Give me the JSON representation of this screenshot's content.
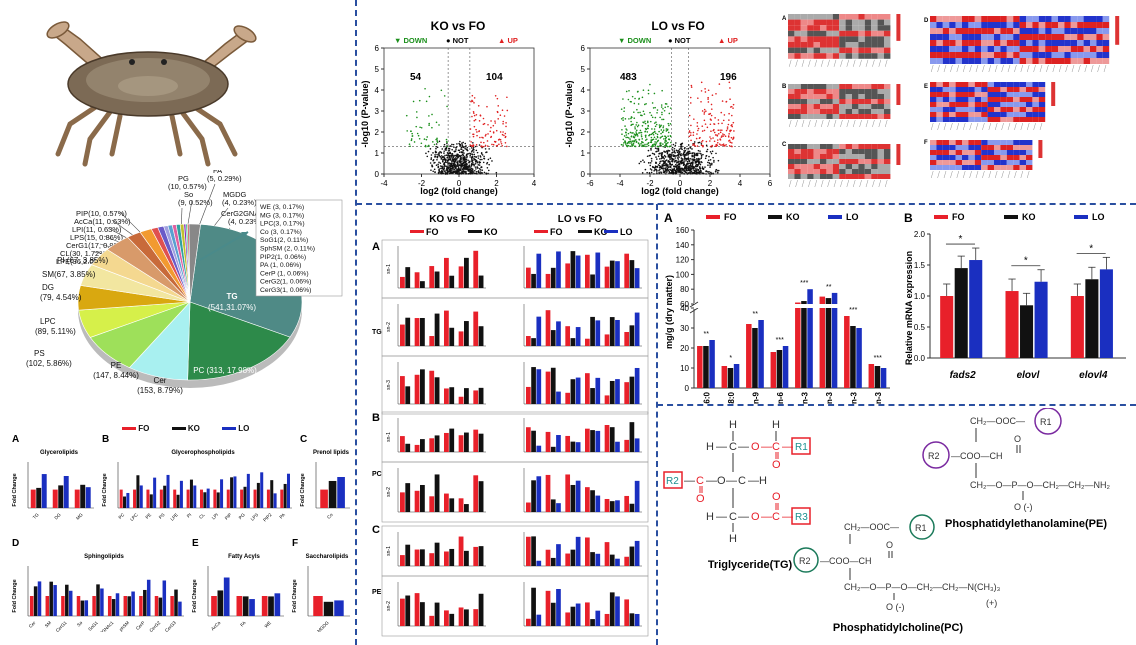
{
  "colors": {
    "fo": "#e8202a",
    "ko": "#111111",
    "lo": "#1a2fc0",
    "down": "#1b8f1b",
    "up": "#e02020",
    "divider": "#2a4fa0"
  },
  "legend": {
    "fo": "FO",
    "ko": "KO",
    "lo": "LO"
  },
  "volcano": {
    "ko": {
      "title": "KO vs FO",
      "down_count": "54",
      "up_count": "104",
      "xlim": [
        -4,
        4
      ],
      "xticks": [
        "-4",
        "-2",
        "0",
        "2",
        "4"
      ]
    },
    "lo": {
      "title": "LO vs FO",
      "down_count": "483",
      "up_count": "196",
      "xlim": [
        -6,
        6
      ],
      "xticks": [
        "-6",
        "-4",
        "-2",
        "0",
        "2",
        "4",
        "6"
      ]
    },
    "legend_down": "▼ DOWN",
    "legend_not": "● NOT",
    "legend_up": "▲ UP",
    "ylabel": "-log10 (P-value)",
    "xlabel": "log2 (fold change)",
    "yticks": [
      "0",
      "1",
      "2",
      "3",
      "4",
      "5",
      "6"
    ]
  },
  "heatmap_labels": [
    "A",
    "B",
    "C",
    "D",
    "E",
    "F"
  ],
  "pie": {
    "labels": [
      {
        "name": "TG",
        "value": "(541,31.07%)"
      },
      {
        "name": "PC (313, 17.98%)",
        "value": ""
      },
      {
        "name": "Cer",
        "value": "(153, 8.79%)"
      },
      {
        "name": "PE",
        "value": "(147, 8.44%)"
      },
      {
        "name": "PS",
        "value": "(102, 5.86%)"
      },
      {
        "name": "LPC",
        "value": "(89, 5.11%)"
      },
      {
        "name": "DG",
        "value": "(79, 4.54%)"
      },
      {
        "name": "SM(67, 3.85%)",
        "value": ""
      },
      {
        "name": "PI (67, 3.85%)",
        "value": ""
      }
    ],
    "left_minor": [
      "PIP(10, 0.57%)",
      "AcCa(11, 0.63%)",
      "LPI(11, 0.63%)",
      "LPS(15, 0.86%)",
      "CerG1(17, 0.98%)",
      "CL(30, 1.72%)",
      "LPE(36,2.07%)"
    ],
    "top_minor": [
      "PG",
      "(10, 0.57%)",
      "So",
      "(9, 0.52%)",
      "FA",
      "(5, 0.29%)",
      "MGDG",
      "(4, 0.23%)",
      "CerG2GNAc1",
      "(4, 0.23%)"
    ],
    "right_box": [
      "WE (3, 0.17%)",
      "MG (3, 0.17%)",
      "LPC(3, 0.17%)",
      "Co (3, 0.17%)",
      "SoG1(2, 0.11%)",
      "SphSM (2, 0.11%)",
      "PIP2(1, 0.06%)",
      "PA (1, 0.06%)",
      "CerP (1, 0.06%)",
      "CerG2(1, 0.06%)",
      "CerG3(1, 0.06%)"
    ]
  },
  "fold_panels": {
    "a": {
      "letter": "A",
      "title": "Glycerolipids",
      "cats": [
        "TG",
        "DG",
        "MG"
      ]
    },
    "b": {
      "letter": "B",
      "title": "Glycerophospholipids",
      "cats": [
        "PC",
        "LPC",
        "PE",
        "PS",
        "LPE",
        "PI",
        "CL",
        "LPI",
        "PIP",
        "PG",
        "LPS",
        "PIP2",
        "PA"
      ]
    },
    "c": {
      "letter": "C",
      "title": "Prenol lipids",
      "cats": [
        "Co"
      ]
    },
    "d": {
      "letter": "D",
      "title": "Sphingolipids",
      "cats": [
        "Cer",
        "SM",
        "CerG1",
        "So",
        "SoG1",
        "CerG2GNAc1",
        "phSM",
        "CerP",
        "CerG2",
        "CerG3"
      ]
    },
    "e": {
      "letter": "E",
      "title": "Fatty Acyls",
      "cats": [
        "AcCa",
        "FA",
        "WE"
      ]
    },
    "f": {
      "letter": "F",
      "title": "Saccharolipids",
      "cats": [
        "MGDG"
      ]
    },
    "ylabel": "Fold Change"
  },
  "sn_panel": {
    "header_ko": "KO vs FO",
    "header_lo": "LO vs FO",
    "groups": [
      {
        "letter": "A",
        "class": "TG",
        "rows": [
          "sn-1",
          "sn-2",
          "sn-3"
        ]
      },
      {
        "letter": "B",
        "class": "PC",
        "rows": [
          "sn-1",
          "sn-2"
        ]
      },
      {
        "letter": "C",
        "class": "PE",
        "rows": [
          "sn-1",
          "sn-2"
        ]
      }
    ]
  },
  "fatty_acid_chart": {
    "letter": "A",
    "ylabel": "mg/g (dry matter)",
    "yticks_low": [
      "0",
      "10",
      "20",
      "30",
      "40"
    ],
    "yticks_high": [
      "60",
      "80",
      "100",
      "120",
      "140",
      "160"
    ],
    "chart_data": {
      "type": "bar",
      "categories": [
        "16:0",
        "18:0",
        "18:1n-9",
        "18:2n-6",
        "18:3n-3",
        "20:5n-3",
        "22:5n-3",
        "22:6n-3"
      ],
      "series": [
        {
          "name": "FO",
          "values": [
            21,
            11,
            32,
            18,
            62,
            70,
            36,
            12
          ]
        },
        {
          "name": "KO",
          "values": [
            21,
            10,
            30,
            19,
            64,
            68,
            31,
            11
          ]
        },
        {
          "name": "LO",
          "values": [
            24,
            12,
            34,
            21,
            80,
            75,
            30,
            10
          ]
        }
      ],
      "stars": [
        "**",
        "*",
        "**",
        "***",
        "***",
        "**",
        "***",
        "***"
      ]
    }
  },
  "mrna_chart": {
    "letter": "B",
    "ylabel": "Relative mRNA expression",
    "yticks": [
      "0.0",
      "0.5",
      "1.0",
      "1.5",
      "2.0"
    ],
    "chart_data": {
      "type": "bar",
      "categories": [
        "fads2",
        "elovl",
        "elovl4"
      ],
      "series": [
        {
          "name": "FO",
          "values": [
            1.0,
            1.08,
            1.0
          ]
        },
        {
          "name": "KO",
          "values": [
            1.45,
            0.85,
            1.27
          ]
        },
        {
          "name": "LO",
          "values": [
            1.58,
            1.23,
            1.43
          ]
        }
      ],
      "stars": [
        "*",
        "*",
        "*"
      ]
    }
  },
  "structures": {
    "tg_name": "Triglyceride(TG)",
    "pe_name": "Phosphatidylethanolamine(PE)",
    "pc_name": "Phosphatidylcholine(PC)",
    "r1": "R1",
    "r2": "R2",
    "r3": "R3"
  }
}
